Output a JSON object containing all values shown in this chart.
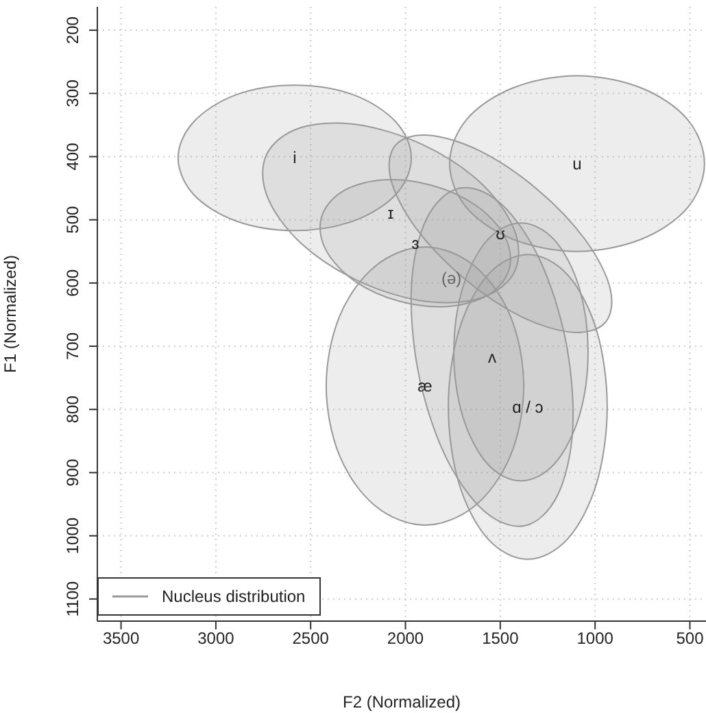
{
  "chart_data": {
    "type": "area",
    "legend_title": "Nucleus distribution",
    "xlabel": "F2 (Normalized)",
    "ylabel": "F1 (Normalized)",
    "xlim": [
      3625,
      415
    ],
    "xticks": [
      3500,
      3000,
      2500,
      2000,
      1500,
      1000,
      500
    ],
    "ylim": [
      1135,
      163
    ],
    "yticks": [
      200,
      300,
      400,
      500,
      600,
      700,
      800,
      900,
      1000,
      1100
    ],
    "grid": true,
    "series": [
      {
        "name": "i",
        "color": "#999999",
        "x": [
          1969,
          2051,
          2276,
          2584,
          2892,
          3117,
          3199,
          3117,
          2892,
          2584,
          2276,
          2051
        ],
        "values": [
          402,
          460,
          502,
          517,
          502,
          460,
          402,
          345,
          302,
          287,
          302,
          345
        ]
      },
      {
        "name": "ɪ",
        "color": "#999999",
        "x": [
          1423,
          1595,
          1895,
          2246,
          2551,
          2729,
          2733,
          2561,
          2261,
          1910,
          1605,
          1427
        ],
        "values": [
          581,
          623,
          629,
          597,
          537,
          463,
          397,
          355,
          349,
          381,
          441,
          515
        ]
      },
      {
        "name": "u",
        "color": "#999999",
        "x": [
          423,
          513,
          759,
          1095,
          1431,
          1677,
          1767,
          1677,
          1431,
          1095,
          759,
          513
        ],
        "values": [
          411,
          481,
          531,
          550,
          531,
          481,
          411,
          341,
          291,
          272,
          291,
          341
        ]
      },
      {
        "name": "ʊ",
        "color": "#999999",
        "x": [
          945,
          1117,
          1391,
          1694,
          1945,
          2077,
          2053,
          1881,
          1607,
          1304,
          1053,
          921
        ],
        "values": [
          662,
          678,
          653,
          592,
          513,
          436,
          382,
          366,
          391,
          452,
          531,
          608
        ]
      },
      {
        "name": "ɜ",
        "color": "#999999",
        "x": [
          1452,
          1559,
          1771,
          2030,
          2267,
          2419,
          2444,
          2337,
          2125,
          1866,
          1629,
          1477
        ],
        "values": [
          577,
          618,
          637,
          629,
          597,
          548,
          497,
          456,
          437,
          445,
          477,
          526
        ]
      },
      {
        "name": "æ",
        "color": "#999999",
        "x": [
          1376,
          1446,
          1636,
          1897,
          2158,
          2348,
          2418,
          2348,
          2158,
          1897,
          1636,
          1446
        ],
        "values": [
          763,
          873,
          953,
          983,
          953,
          873,
          763,
          653,
          573,
          543,
          573,
          653
        ]
      },
      {
        "name": "ʌ",
        "color": "#999999",
        "x": [
          1370,
          1588,
          1794,
          1933,
          1968,
          1888,
          1716,
          1498,
          1292,
          1153,
          1118,
          1198
        ],
        "values": [
          984,
          960,
          871,
          740,
          603,
          498,
          450,
          474,
          563,
          694,
          831,
          936
        ]
      },
      {
        "name": "ɑ / ɔ",
        "color": "#999999",
        "x": [
          936,
          992,
          1145,
          1355,
          1565,
          1718,
          1774,
          1718,
          1565,
          1355,
          1145,
          992
        ],
        "values": [
          796,
          917,
          1005,
          1037,
          1005,
          917,
          796,
          675,
          587,
          555,
          587,
          675
        ]
      },
      {
        "color": "#999999",
        "x": [
          1037,
          1084,
          1214,
          1391,
          1568,
          1698,
          1745,
          1698,
          1568,
          1391,
          1214,
          1084
        ],
        "values": [
          709,
          811,
          886,
          913,
          886,
          811,
          709,
          607,
          532,
          505,
          532,
          607
        ]
      }
    ],
    "annotations": [
      "(ə)"
    ]
  }
}
